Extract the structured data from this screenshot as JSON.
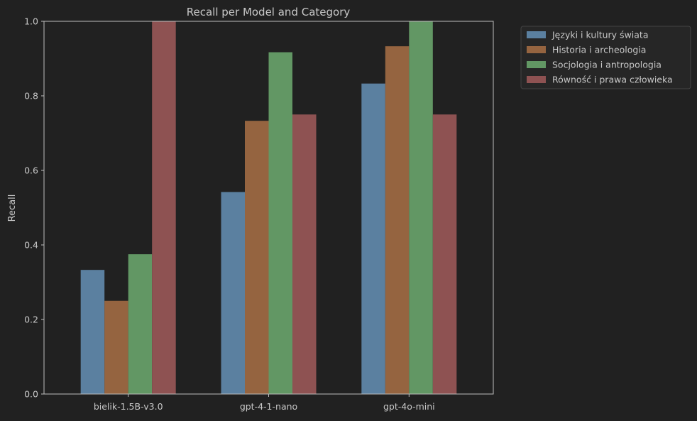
{
  "chart_data": {
    "type": "bar",
    "title": "Recall per Model and Category",
    "xlabel": "",
    "ylabel": "Recall",
    "ylim": [
      0,
      1.0
    ],
    "yticks": [
      "0.0",
      "0.2",
      "0.4",
      "0.6",
      "0.8",
      "1.0"
    ],
    "categories": [
      "bielik-1.5B-v3.0",
      "gpt-4-1-nano",
      "gpt-4o-mini"
    ],
    "series": [
      {
        "name": "Języki i kultury świata",
        "color": "#5b80a0",
        "values": [
          0.333,
          0.542,
          0.833
        ]
      },
      {
        "name": "Historia i archeologia",
        "color": "#956440",
        "values": [
          0.25,
          0.733,
          0.933
        ]
      },
      {
        "name": "Socjologia i antropologia",
        "color": "#629764",
        "values": [
          0.375,
          0.917,
          1.0
        ]
      },
      {
        "name": "Równość i prawa człowieka",
        "color": "#8e5252",
        "values": [
          1.0,
          0.75,
          0.75
        ]
      }
    ],
    "legend_position": "outside-top-right",
    "grid": false,
    "colors": {
      "background": "#212121",
      "axes": "#bdbdbd",
      "text": "#c8c8c8"
    }
  }
}
